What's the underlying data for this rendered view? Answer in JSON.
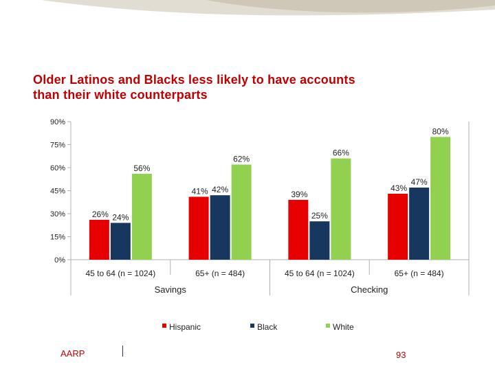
{
  "slide": {
    "title_line1": "Older Latinos and Blacks less likely to have accounts",
    "title_line2": "than their white counterparts",
    "footer_brand": "AARP",
    "page_number": "93"
  },
  "colors": {
    "hispanic": "#e60000",
    "black": "#17375e",
    "white": "#92d050",
    "title": "#c00000",
    "swoosh": "#ddd8cc"
  },
  "chart_data": {
    "type": "bar",
    "title": "Older Latinos and Blacks less likely to have accounts than their white counterparts",
    "ylim": [
      0,
      90
    ],
    "yticks": [
      0,
      15,
      30,
      45,
      60,
      75,
      90
    ],
    "ytick_labels": [
      "0%",
      "15%",
      "30%",
      "45%",
      "60%",
      "75%",
      "90%"
    ],
    "categories": [
      "45 to 64 (n = 1024)",
      "65+ (n = 484)",
      "45 to 64 (n = 1024)",
      "65+ (n = 484)"
    ],
    "groups": [
      {
        "label": "Savings",
        "span": [
          0,
          1
        ]
      },
      {
        "label": "Checking",
        "span": [
          2,
          3
        ]
      }
    ],
    "series": [
      {
        "name": "Hispanic",
        "values": [
          26,
          41,
          39,
          43
        ],
        "labels": [
          "26%",
          "41%",
          "39%",
          "43%"
        ]
      },
      {
        "name": "Black",
        "values": [
          24,
          42,
          25,
          47
        ],
        "labels": [
          "24%",
          "42%",
          "25%",
          "47%"
        ]
      },
      {
        "name": "White",
        "values": [
          56,
          62,
          66,
          80
        ],
        "labels": [
          "56%",
          "62%",
          "66%",
          "80%"
        ]
      }
    ],
    "legend": [
      "Hispanic",
      "Black",
      "White"
    ],
    "legend_position": "bottom"
  }
}
